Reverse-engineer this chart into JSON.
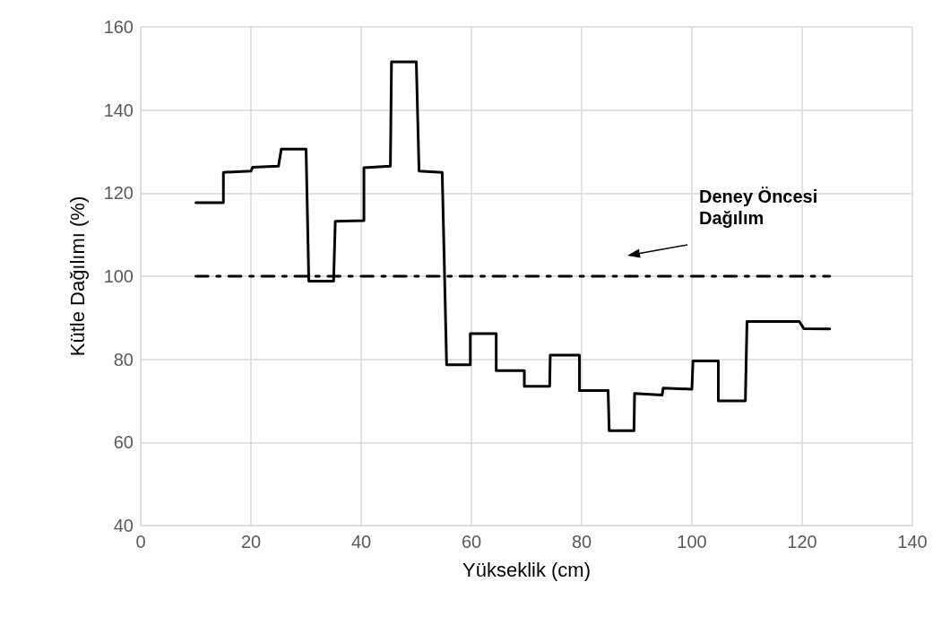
{
  "chart_data": {
    "type": "line",
    "xlabel": "Yükseklik (cm)",
    "ylabel": "Kütle Dağılımı (%)",
    "xlim": [
      0,
      140
    ],
    "xticks": [
      0,
      20,
      40,
      60,
      80,
      100,
      120,
      140
    ],
    "ylim": [
      40,
      160
    ],
    "yticks": [
      40,
      60,
      80,
      100,
      120,
      140,
      160
    ],
    "grid": true,
    "marker": "none",
    "series": [
      {
        "color": "#000000",
        "line_style": "solid",
        "x": [
          10,
          15,
          15,
          20,
          20.3,
          25,
          25.5,
          30,
          30.5,
          35,
          35.3,
          40.5,
          40.5,
          45.3,
          45.5,
          50,
          50.5,
          54.7,
          55.5,
          59.8,
          59.8,
          64.5,
          64.5,
          69.6,
          69.6,
          74.2,
          74.3,
          79.6,
          79.6,
          84.8,
          85,
          89.5,
          89.6,
          94.6,
          94.8,
          100,
          100.2,
          104.8,
          104.8,
          109.7,
          110,
          119.5,
          120.3,
          125
        ],
        "values": [
          117.7,
          117.7,
          125,
          125.3,
          126.2,
          126.5,
          130.6,
          130.6,
          98.8,
          98.8,
          113.2,
          113.4,
          126.1,
          126.5,
          151.6,
          151.6,
          125.3,
          125,
          78.7,
          78.7,
          86.2,
          86.2,
          77.3,
          77.3,
          73.5,
          73.5,
          81,
          81,
          72.5,
          72.5,
          62.8,
          62.8,
          71.8,
          71.4,
          73.1,
          72.8,
          79.6,
          79.6,
          70,
          70,
          89.1,
          89.1,
          87.4,
          87.3
        ]
      },
      {
        "color": "#000000",
        "line_style": "dashdot",
        "x": [
          10,
          125
        ],
        "values": [
          100,
          100
        ]
      }
    ],
    "annotations": [
      "Deney Öncesi\nDağılım"
    ]
  }
}
